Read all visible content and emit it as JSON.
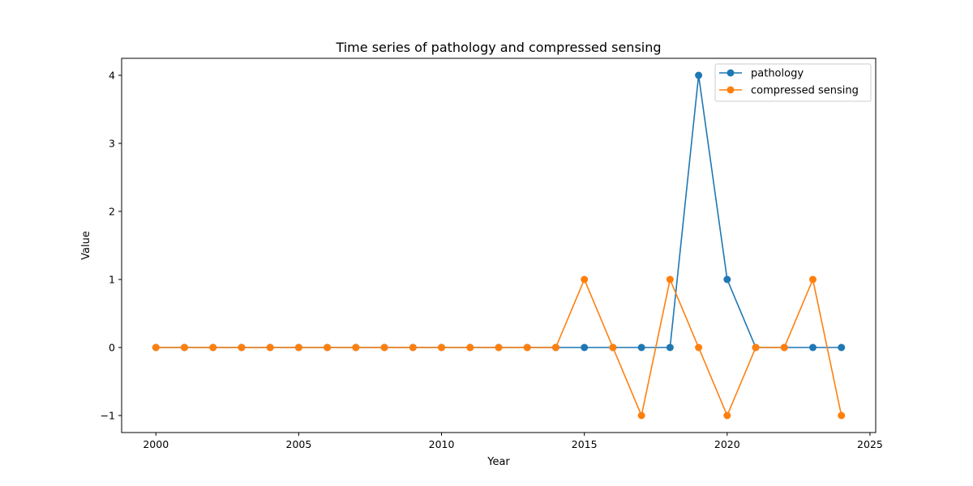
{
  "chart_data": {
    "type": "line",
    "title": "Time series of pathology and compressed sensing",
    "xlabel": "Year",
    "ylabel": "Value",
    "x": [
      2000,
      2001,
      2002,
      2003,
      2004,
      2005,
      2006,
      2007,
      2008,
      2009,
      2010,
      2011,
      2012,
      2013,
      2014,
      2015,
      2016,
      2017,
      2018,
      2019,
      2020,
      2021,
      2022,
      2023,
      2024
    ],
    "series": [
      {
        "name": "pathology",
        "color": "#1f77b4",
        "values": [
          0,
          0,
          0,
          0,
          0,
          0,
          0,
          0,
          0,
          0,
          0,
          0,
          0,
          0,
          0,
          0,
          0,
          0,
          0,
          4,
          1,
          0,
          0,
          0,
          0
        ]
      },
      {
        "name": "compressed sensing",
        "color": "#ff7f0e",
        "values": [
          0,
          0,
          0,
          0,
          0,
          0,
          0,
          0,
          0,
          0,
          0,
          0,
          0,
          0,
          0,
          1,
          0,
          -1,
          1,
          0,
          -1,
          0,
          0,
          1,
          -1
        ]
      }
    ],
    "xlim": [
      1998.8,
      2025.2
    ],
    "ylim": [
      -1.25,
      4.25
    ],
    "xticks": [
      2000,
      2005,
      2010,
      2015,
      2020,
      2025
    ],
    "xtick_labels": [
      "2000",
      "2005",
      "2010",
      "2015",
      "2020",
      "2025"
    ],
    "yticks": [
      -1,
      0,
      1,
      2,
      3,
      4
    ],
    "ytick_labels": [
      "−1",
      "0",
      "1",
      "2",
      "3",
      "4"
    ],
    "grid": false,
    "legend_position": "top-right"
  }
}
